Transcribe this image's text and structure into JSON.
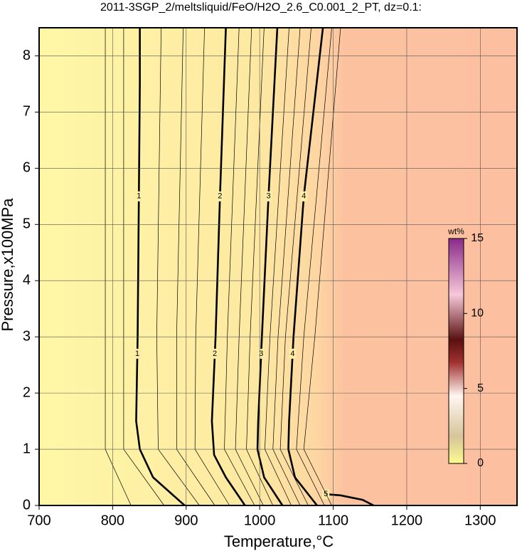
{
  "chart_data": {
    "type": "contour",
    "title": "2011-3SGP_2/meltsliquid/FeO/H2O_2.6_C0.001_2_PT, dz=0.1:",
    "x_label": "Temperature,°C",
    "y_label": "Pressure,x100MPa",
    "xlim": [
      700,
      1350
    ],
    "ylim": [
      0,
      8.5
    ],
    "xticks": [
      700,
      800,
      900,
      1000,
      1100,
      1200,
      1300
    ],
    "yticks": [
      0,
      1,
      2,
      3,
      4,
      5,
      6,
      7,
      8
    ],
    "grid": true,
    "contours": [
      {
        "level": 1,
        "major": true,
        "x": [
          898,
          855,
          837,
          832,
          834,
          837,
          837
        ],
        "y": [
          0,
          0.5,
          1,
          1.5,
          3,
          7.5,
          8.5
        ]
      },
      {
        "level": 2,
        "major": true,
        "x": [
          980,
          954,
          938,
          935,
          940,
          946,
          954
        ],
        "y": [
          0,
          0.5,
          0.9,
          1.5,
          3,
          5.5,
          8.5
        ]
      },
      {
        "level": 3,
        "major": true,
        "x": [
          1031,
          1006,
          997,
          998,
          1003,
          1012,
          1024
        ],
        "y": [
          0,
          0.5,
          1,
          1.5,
          3,
          5.5,
          8.5
        ]
      },
      {
        "level": 4,
        "major": true,
        "x": [
          1078,
          1048,
          1039,
          1040,
          1046,
          1060,
          1086
        ],
        "y": [
          0,
          0.5,
          1,
          1.5,
          3,
          5.5,
          8.5
        ]
      },
      {
        "level": 5,
        "major": true,
        "x": [
          1090,
          1110,
          1140,
          1155
        ],
        "y": [
          0.2,
          0.18,
          0.1,
          0
        ]
      },
      {
        "level": 0.5,
        "major": false,
        "x": [
          825,
          790,
          790,
          790
        ],
        "y": [
          0,
          1,
          3,
          8.5
        ]
      },
      {
        "level": 0.75,
        "major": false,
        "x": [
          870,
          815,
          815,
          815
        ],
        "y": [
          0,
          1,
          3,
          8.5
        ]
      },
      {
        "level": 1.25,
        "major": false,
        "x": [
          918,
          862,
          860,
          866
        ],
        "y": [
          0,
          1,
          3,
          8.5
        ]
      },
      {
        "level": 1.5,
        "major": false,
        "x": [
          939,
          887,
          887,
          896
        ],
        "y": [
          0,
          1,
          3,
          8.5
        ]
      },
      {
        "level": 1.75,
        "major": false,
        "x": [
          959,
          912,
          913,
          925
        ],
        "y": [
          0,
          1,
          3,
          8.5
        ]
      },
      {
        "level": 2.25,
        "major": false,
        "x": [
          993,
          952,
          956,
          972
        ],
        "y": [
          0,
          1,
          3,
          8.5
        ]
      },
      {
        "level": 2.5,
        "major": false,
        "x": [
          1005,
          967,
          972,
          989
        ],
        "y": [
          0,
          1,
          3,
          8.5
        ]
      },
      {
        "level": 2.75,
        "major": false,
        "x": [
          1018,
          982,
          987,
          1006
        ],
        "y": [
          0,
          1,
          3,
          8.5
        ]
      },
      {
        "level": 3.25,
        "major": false,
        "x": [
          1043,
          1007,
          1014,
          1040
        ],
        "y": [
          0,
          1,
          3,
          8.5
        ]
      },
      {
        "level": 3.5,
        "major": false,
        "x": [
          1055,
          1018,
          1025,
          1055
        ],
        "y": [
          0,
          1,
          3,
          8.5
        ]
      },
      {
        "level": 3.75,
        "major": false,
        "x": [
          1066,
          1028,
          1035,
          1070
        ],
        "y": [
          0,
          1,
          3,
          8.5
        ]
      },
      {
        "level": 4.25,
        "major": false,
        "x": [
          1088,
          1050,
          1060,
          1098
        ],
        "y": [
          0,
          1,
          3,
          8.5
        ]
      },
      {
        "level": 4.5,
        "major": false,
        "x": [
          1098,
          1060,
          1075,
          1110
        ],
        "y": [
          0,
          1,
          3,
          8.5
        ]
      }
    ],
    "colorbar": {
      "label": "wt%",
      "lim": [
        0,
        15
      ],
      "ticks": [
        0,
        5,
        10,
        15
      ]
    }
  }
}
